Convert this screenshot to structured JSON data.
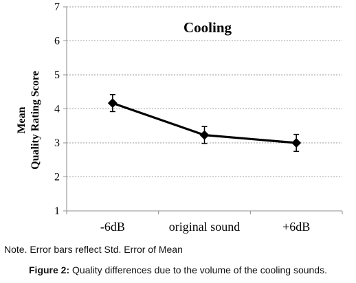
{
  "chart_data": {
    "type": "line",
    "title": "Cooling",
    "ylabel_line1": "Mean",
    "ylabel_line2": "Quality Rating  Score",
    "xlabel": "",
    "categories": [
      "-6dB",
      "original sound",
      "+6dB"
    ],
    "series": [
      {
        "values": [
          4.17,
          3.23,
          3.0
        ],
        "errors": [
          0.25,
          0.25,
          0.25
        ],
        "color": "#000000",
        "marker": "diamond"
      }
    ],
    "ylim": [
      1,
      7
    ],
    "yticks": [
      "1",
      "2",
      "3",
      "4",
      "5",
      "6",
      "7"
    ],
    "grid": "horizontal dashed",
    "legend": "none"
  },
  "note": "Note. Error bars reflect Std. Error of Mean",
  "caption": {
    "label": "Figure 2:",
    "text": " Quality differences due to the volume of the cooling sounds."
  }
}
